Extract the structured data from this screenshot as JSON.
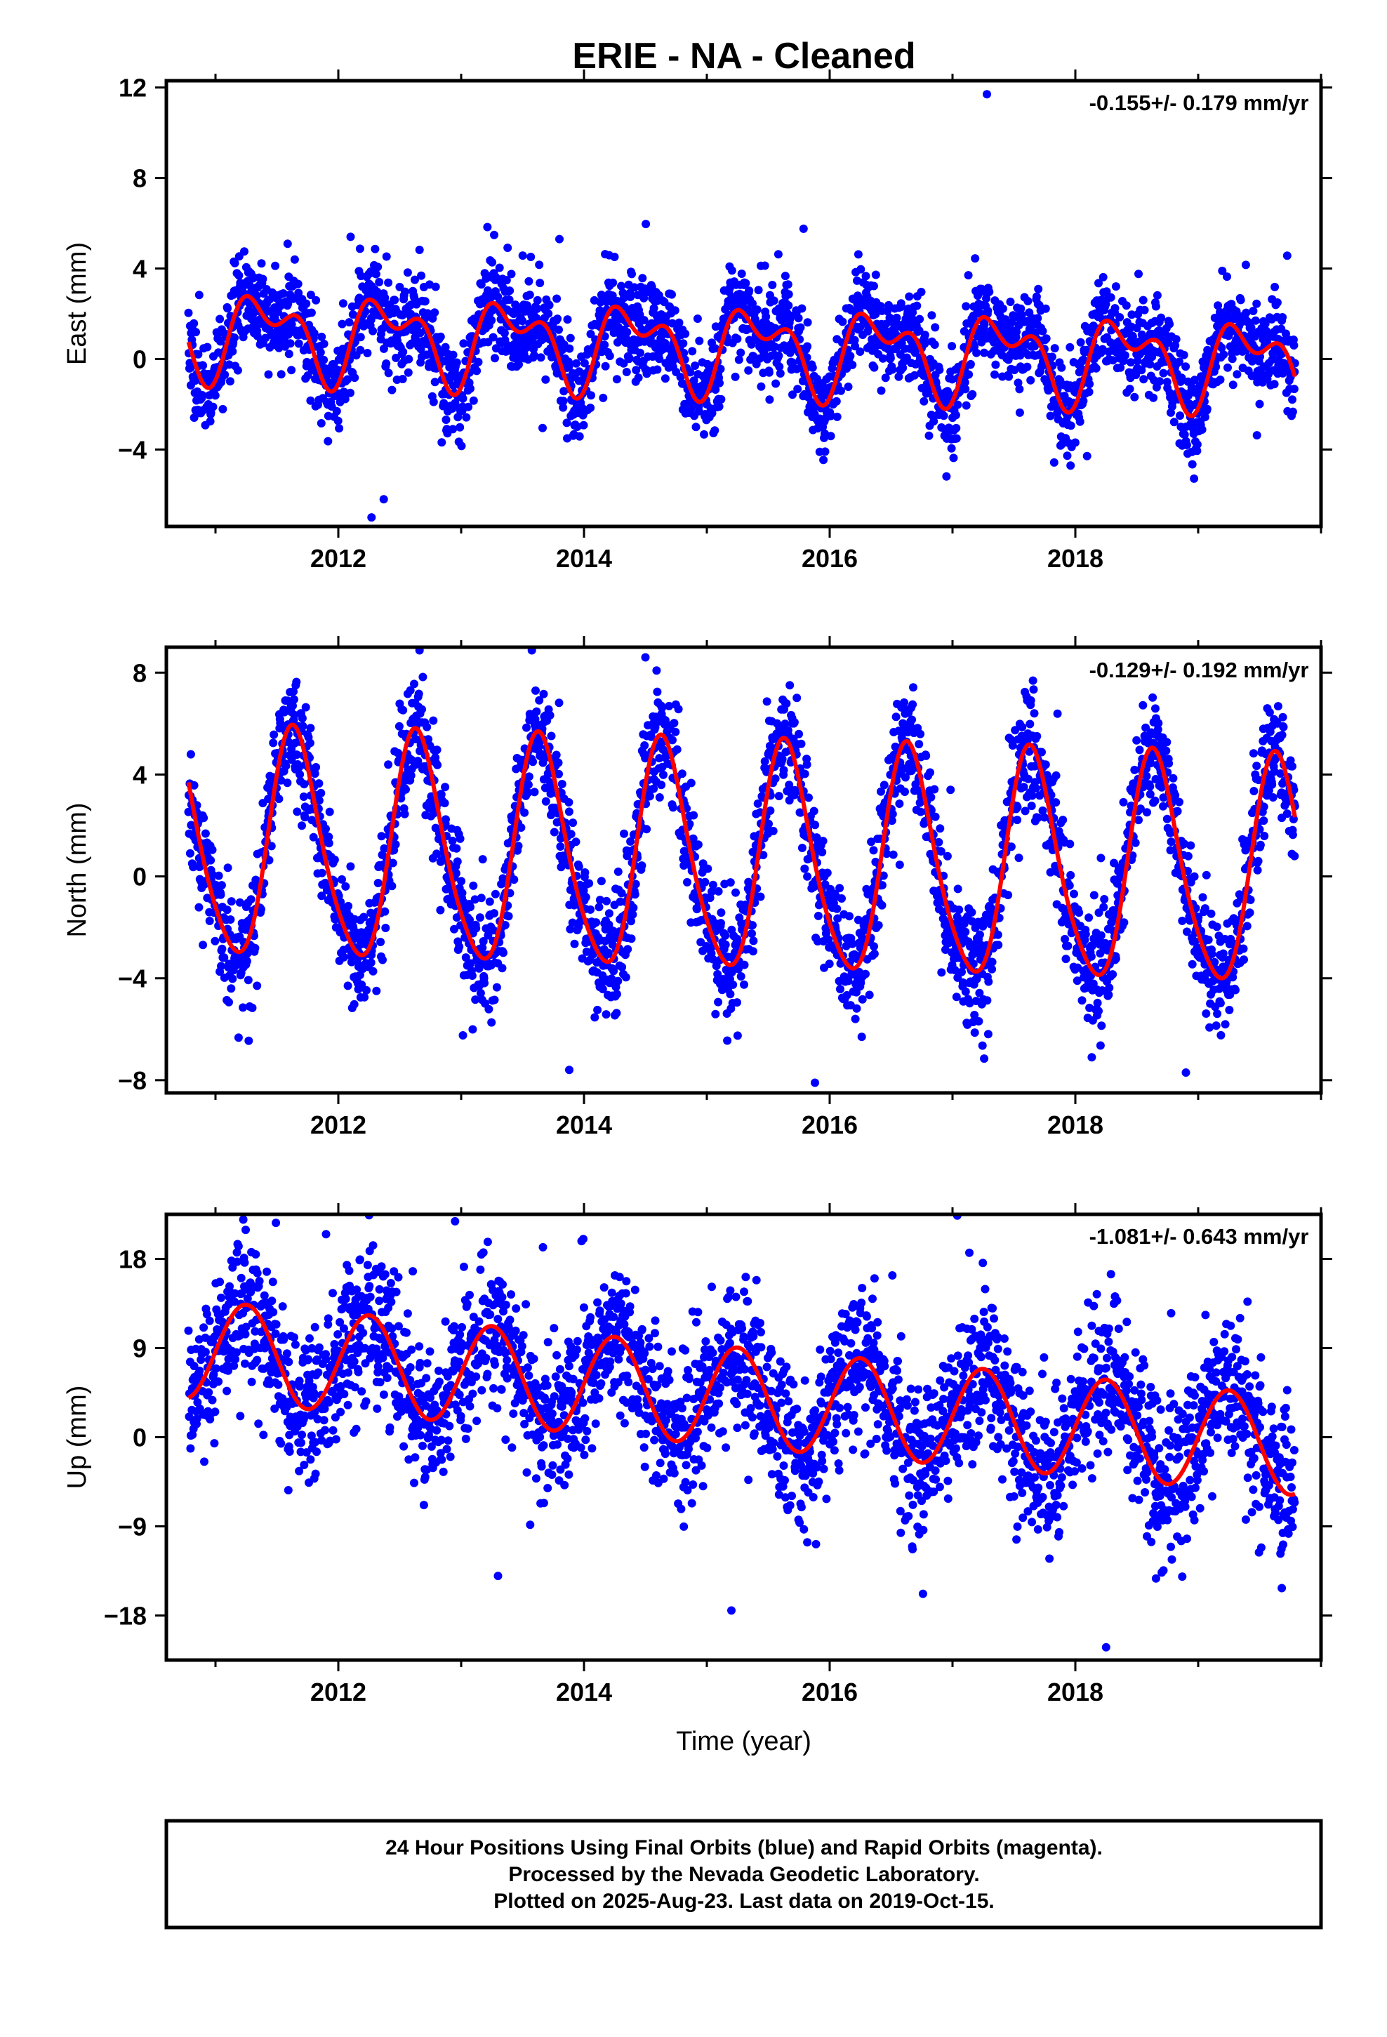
{
  "title": "ERIE  - NA - Cleaned",
  "colors": {
    "points": "#0000ff",
    "fit": "#ff0000",
    "axis": "#000000"
  },
  "chart_data": [
    {
      "type": "scatter",
      "ylabel": "East (mm)",
      "xlabel": "",
      "annotation": "-0.155+/- 0.179 mm/yr",
      "xlim": [
        2010.6,
        2020.0
      ],
      "ylim": [
        -7.4,
        12.3
      ],
      "yticks": [
        -4,
        0,
        4,
        8,
        12
      ],
      "yticklabels": [
        "−4",
        "0",
        "4",
        "8",
        "12"
      ],
      "xticks": [
        2012,
        2014,
        2016,
        2018
      ],
      "xticklabels": [
        "2012",
        "2014",
        "2016",
        "2018"
      ],
      "start": 2010.78,
      "end": 2019.79,
      "fit": {
        "offset": 0.5,
        "rate": -0.155,
        "annual_amp": 1.5,
        "annual_phase": -1.0,
        "semiannual_amp": 1.0,
        "semiannual_phase": -1.0
      },
      "scatter_sigma": 1.0,
      "outliers": [
        [
          2017.28,
          11.7
        ],
        [
          2012.27,
          -7.0
        ],
        [
          2012.37,
          -6.2
        ],
        [
          2012.1,
          5.4
        ],
        [
          2013.8,
          5.3
        ]
      ],
      "seed": 11
    },
    {
      "type": "scatter",
      "ylabel": "North (mm)",
      "xlabel": "",
      "annotation": "-0.129+/- 0.192 mm/yr",
      "xlim": [
        2010.6,
        2020.0
      ],
      "ylim": [
        -8.5,
        9.0
      ],
      "yticks": [
        -8,
        -4,
        0,
        4,
        8
      ],
      "yticklabels": [
        "−8",
        "−4",
        "0",
        "4",
        "8"
      ],
      "xticks": [
        2012,
        2014,
        2016,
        2018
      ],
      "xticklabels": [
        "2012",
        "2014",
        "2016",
        "2018"
      ],
      "start": 2010.78,
      "end": 2019.79,
      "fit": {
        "offset": 0.6,
        "rate": -0.129,
        "annual_amp": 4.4,
        "annual_phase": -2.5,
        "semiannual_amp": 0.6,
        "semiannual_phase": 0.5
      },
      "scatter_sigma": 1.1,
      "outliers": [
        [
          2014.5,
          8.6
        ],
        [
          2013.88,
          -7.6
        ],
        [
          2015.88,
          -8.1
        ],
        [
          2018.9,
          -7.7
        ]
      ],
      "seed": 23
    },
    {
      "type": "scatter",
      "ylabel": "Up (mm)",
      "xlabel": "Time (year)",
      "annotation": "-1.081+/- 0.643 mm/yr",
      "xlim": [
        2010.6,
        2020.0
      ],
      "ylim": [
        -22.5,
        22.5
      ],
      "yticks": [
        -18,
        -9,
        0,
        9,
        18
      ],
      "yticklabels": [
        "−18",
        "−9",
        "0",
        "9",
        "18"
      ],
      "xticks": [
        2012,
        2014,
        2016,
        2018
      ],
      "xticklabels": [
        "2012",
        "2014",
        "2016",
        "2018"
      ],
      "start": 2010.78,
      "end": 2019.79,
      "fit": {
        "offset": 4.0,
        "rate": -1.081,
        "annual_amp": 5.0,
        "annual_phase": 0.0,
        "semiannual_amp": 0.0,
        "semiannual_phase": 0.0
      },
      "scatter_sigma": 3.6,
      "outliers": [
        [
          2012.95,
          21.8
        ],
        [
          2013.98,
          19.8
        ],
        [
          2011.9,
          20.5
        ],
        [
          2018.25,
          -21.2
        ],
        [
          2013.3,
          -14.0
        ],
        [
          2015.2,
          -17.5
        ]
      ],
      "seed": 37
    }
  ],
  "footer": {
    "line1": "24 Hour Positions Using Final Orbits (blue) and Rapid Orbits (magenta).",
    "line2": "Processed by the Nevada Geodetic Laboratory.",
    "line3": "Plotted on 2025-Aug-23. Last data on 2019-Oct-15."
  }
}
